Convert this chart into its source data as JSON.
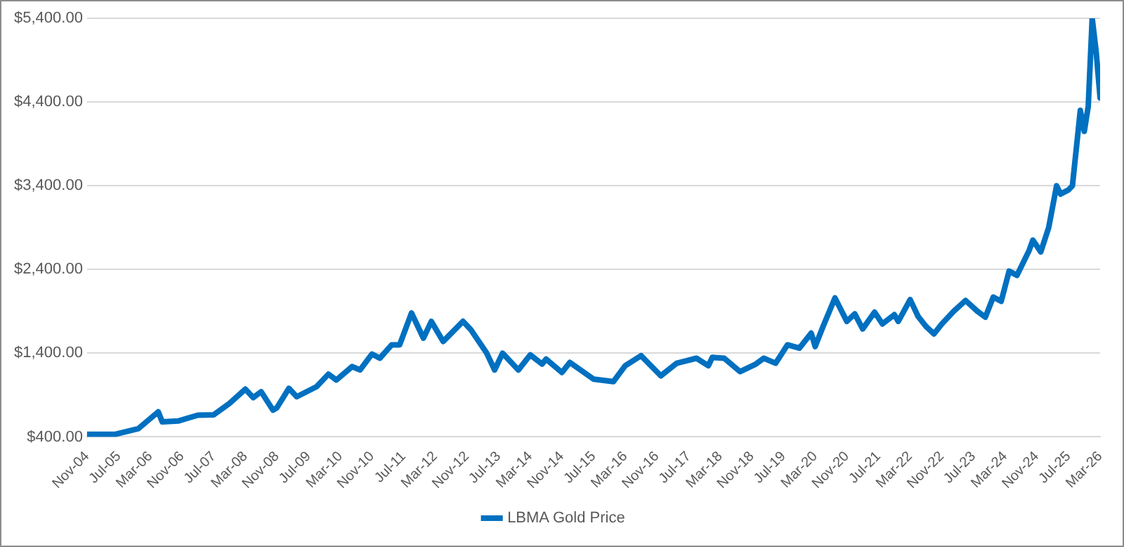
{
  "chart_data": {
    "type": "line",
    "x": [
      "2004-11",
      "2005-06",
      "2005-12",
      "2006-05",
      "2006-06",
      "2006-10",
      "2007-03",
      "2007-07",
      "2007-11",
      "2008-03",
      "2008-05",
      "2008-07",
      "2008-10",
      "2008-11",
      "2009-02",
      "2009-04",
      "2009-09",
      "2009-12",
      "2010-02",
      "2010-06",
      "2010-08",
      "2010-11",
      "2011-01",
      "2011-04",
      "2011-06",
      "2011-09",
      "2011-12",
      "2012-02",
      "2012-05",
      "2012-10",
      "2012-12",
      "2013-04",
      "2013-06",
      "2013-08",
      "2013-12",
      "2014-03",
      "2014-06",
      "2014-07",
      "2014-11",
      "2015-01",
      "2015-07",
      "2015-12",
      "2016-03",
      "2016-07",
      "2016-12",
      "2017-04",
      "2017-09",
      "2017-12",
      "2018-01",
      "2018-04",
      "2018-08",
      "2018-12",
      "2019-02",
      "2019-05",
      "2019-08",
      "2019-11",
      "2020-02",
      "2020-03",
      "2020-05",
      "2020-08",
      "2020-11",
      "2021-01",
      "2021-03",
      "2021-06",
      "2021-08",
      "2021-11",
      "2021-12",
      "2022-03",
      "2022-05",
      "2022-07",
      "2022-09",
      "2022-11",
      "2023-02",
      "2023-05",
      "2023-08",
      "2023-10",
      "2023-12",
      "2024-02",
      "2024-04",
      "2024-06",
      "2024-09",
      "2024-10",
      "2024-12",
      "2025-02",
      "2025-04",
      "2025-05",
      "2025-07",
      "2025-08",
      "2025-10",
      "2025-11",
      "2025-12",
      "2026-01",
      "2026-02",
      "2026-03"
    ],
    "series": [
      {
        "name": "LBMA Gold Price",
        "color": "#0070c0",
        "values": [
          430,
          430,
          500,
          700,
          580,
          590,
          660,
          665,
          800,
          970,
          870,
          940,
          720,
          750,
          980,
          880,
          1000,
          1150,
          1080,
          1240,
          1200,
          1390,
          1340,
          1500,
          1500,
          1880,
          1580,
          1780,
          1540,
          1780,
          1680,
          1400,
          1200,
          1400,
          1200,
          1380,
          1270,
          1330,
          1170,
          1290,
          1090,
          1060,
          1250,
          1370,
          1130,
          1280,
          1340,
          1250,
          1350,
          1340,
          1180,
          1270,
          1340,
          1280,
          1500,
          1460,
          1640,
          1480,
          1720,
          2060,
          1780,
          1870,
          1690,
          1890,
          1750,
          1860,
          1780,
          2040,
          1840,
          1720,
          1630,
          1750,
          1900,
          2030,
          1900,
          1830,
          2070,
          2020,
          2380,
          2330,
          2620,
          2750,
          2610,
          2900,
          3400,
          3300,
          3350,
          3400,
          4300,
          4050,
          4350,
          5400,
          5000,
          4450
        ]
      }
    ],
    "xlim": [
      "2004-11",
      "2026-03"
    ],
    "xticks": [
      {
        "value": "2004-11",
        "label": "Nov-04"
      },
      {
        "value": "2005-07",
        "label": "Jul-05"
      },
      {
        "value": "2006-03",
        "label": "Mar-06"
      },
      {
        "value": "2006-11",
        "label": "Nov-06"
      },
      {
        "value": "2007-07",
        "label": "Jul-07"
      },
      {
        "value": "2008-03",
        "label": "Mar-08"
      },
      {
        "value": "2008-11",
        "label": "Nov-08"
      },
      {
        "value": "2009-07",
        "label": "Jul-09"
      },
      {
        "value": "2010-03",
        "label": "Mar-10"
      },
      {
        "value": "2010-11",
        "label": "Nov-10"
      },
      {
        "value": "2011-07",
        "label": "Jul-11"
      },
      {
        "value": "2012-03",
        "label": "Mar-12"
      },
      {
        "value": "2012-11",
        "label": "Nov-12"
      },
      {
        "value": "2013-07",
        "label": "Jul-13"
      },
      {
        "value": "2014-03",
        "label": "Mar-14"
      },
      {
        "value": "2014-11",
        "label": "Nov-14"
      },
      {
        "value": "2015-07",
        "label": "Jul-15"
      },
      {
        "value": "2016-03",
        "label": "Mar-16"
      },
      {
        "value": "2016-11",
        "label": "Nov-16"
      },
      {
        "value": "2017-07",
        "label": "Jul-17"
      },
      {
        "value": "2018-03",
        "label": "Mar-18"
      },
      {
        "value": "2018-11",
        "label": "Nov-18"
      },
      {
        "value": "2019-07",
        "label": "Jul-19"
      },
      {
        "value": "2020-03",
        "label": "Mar-20"
      },
      {
        "value": "2020-11",
        "label": "Nov-20"
      },
      {
        "value": "2021-07",
        "label": "Jul-21"
      },
      {
        "value": "2022-03",
        "label": "Mar-22"
      },
      {
        "value": "2022-11",
        "label": "Nov-22"
      },
      {
        "value": "2023-07",
        "label": "Jul-23"
      },
      {
        "value": "2024-03",
        "label": "Mar-24"
      },
      {
        "value": "2024-11",
        "label": "Nov-24"
      },
      {
        "value": "2025-07",
        "label": "Jul-25"
      },
      {
        "value": "2026-03",
        "label": "Mar-26"
      }
    ],
    "ylim": [
      400,
      5400
    ],
    "yticks": [
      {
        "value": 400,
        "label": "$400.00"
      },
      {
        "value": 1400,
        "label": "$1,400.00"
      },
      {
        "value": 2400,
        "label": "$2,400.00"
      },
      {
        "value": 3400,
        "label": "$3,400.00"
      },
      {
        "value": 4400,
        "label": "$4,400.00"
      },
      {
        "value": 5400,
        "label": "$5,400.00"
      }
    ],
    "grid": "y",
    "legend": "bottom",
    "marker": "none",
    "line_style": "solid"
  }
}
